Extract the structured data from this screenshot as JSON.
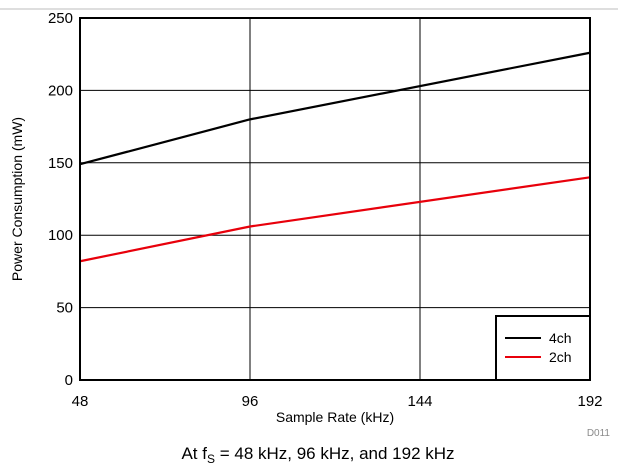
{
  "chart_data": {
    "type": "line",
    "title": "",
    "xlabel": "Sample Rate (kHz)",
    "ylabel": "Power Consumption (mW)",
    "xlim": [
      48,
      192
    ],
    "ylim": [
      0,
      250
    ],
    "xticks": [
      48,
      96,
      144,
      192
    ],
    "yticks": [
      0,
      50,
      100,
      150,
      200,
      250
    ],
    "grid": true,
    "legend_position": "bottom-right",
    "x": [
      48,
      96,
      192
    ],
    "series": [
      {
        "name": "4ch",
        "color": "#000000",
        "values": [
          149,
          180,
          226
        ]
      },
      {
        "name": "2ch",
        "color": "#e8000b",
        "values": [
          82,
          106,
          140
        ]
      }
    ]
  },
  "figure_code": "D011",
  "caption": {
    "prefix": "At f",
    "subscript": "S",
    "suffix": " = 48 kHz, 96 kHz, and 192 kHz"
  }
}
